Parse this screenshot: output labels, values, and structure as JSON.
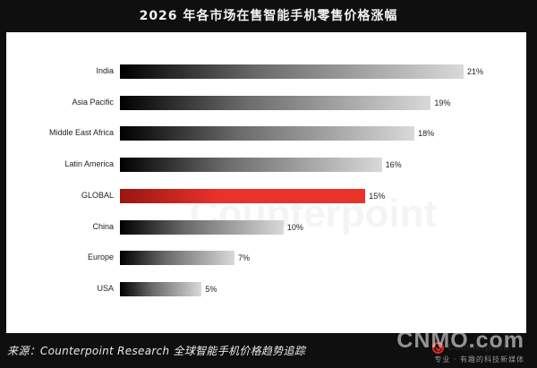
{
  "chart_data": {
    "type": "bar",
    "orientation": "horizontal",
    "title": "2026 年各市场在售智能手机零售价格涨幅",
    "categories": [
      "India",
      "Asia Pacific",
      "Middle East Africa",
      "Latin America",
      "GLOBAL",
      "China",
      "Europe",
      "USA"
    ],
    "values": [
      21,
      19,
      18,
      16,
      15,
      10,
      7,
      5
    ],
    "value_labels": [
      "21%",
      "19%",
      "18%",
      "16%",
      "15%",
      "10%",
      "7%",
      "5%"
    ],
    "unit": "%",
    "xlim": [
      0,
      21
    ],
    "grid": false,
    "highlight_category": "GLOBAL",
    "colors": {
      "bar_dark": "#000000",
      "bar_light": "#d9d9d9",
      "highlight_dark": "#9a1611",
      "highlight_light": "#e8322a"
    }
  },
  "logo": {
    "text": "Counterpoint",
    "icon": "counterpoint-logo-icon",
    "color": "#e02b20"
  },
  "watermark": "Counterpoint",
  "source": "来源：Counterpoint Research 全球智能手机价格趋势追踪",
  "brand": {
    "name": "CNMO.com",
    "tagline": "专业 · 有趣的科技新媒体"
  }
}
